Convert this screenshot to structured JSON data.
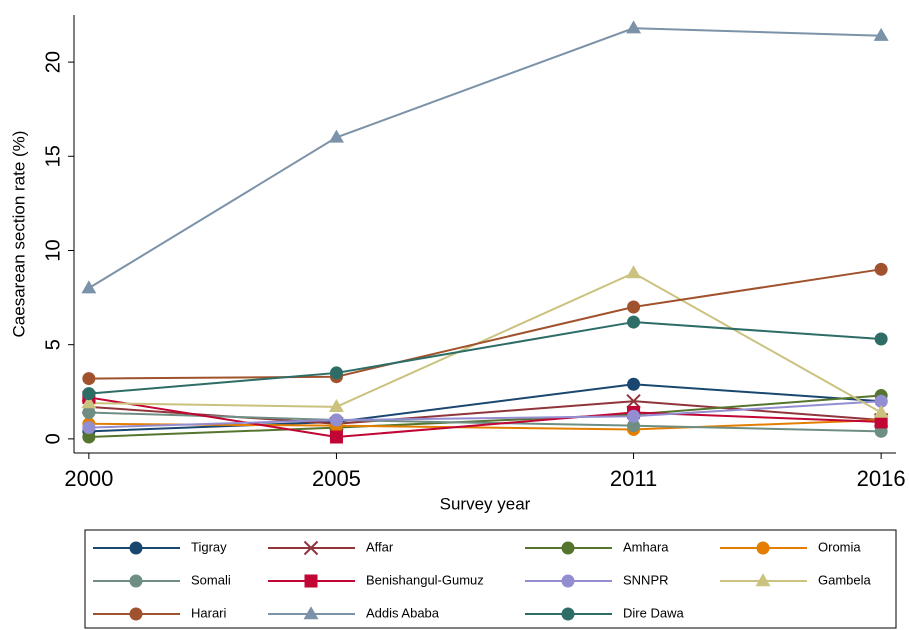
{
  "chart_data": {
    "type": "line",
    "x_label": "Survey year",
    "y_label": "Caesarean section rate (%)",
    "x": [
      2000,
      2005,
      2011,
      2016
    ],
    "xlim": [
      1999.7,
      2016.3
    ],
    "xticks": [
      2000,
      2005,
      2011,
      2016
    ],
    "ylim": [
      -0.75,
      22.5
    ],
    "yticks": [
      0,
      5,
      10,
      15,
      20
    ],
    "legend": "bottom",
    "series": [
      {
        "name": "Tigray",
        "color": "#1a476f",
        "marker": "circle",
        "values": [
          0.4,
          0.9,
          2.9,
          2.0
        ]
      },
      {
        "name": "Affar",
        "color": "#90353b",
        "marker": "x",
        "values": [
          1.7,
          0.8,
          2.0,
          1.0
        ]
      },
      {
        "name": "Amhara",
        "color": "#55752f",
        "marker": "circle",
        "values": [
          0.1,
          0.6,
          1.3,
          2.3
        ]
      },
      {
        "name": "Oromia",
        "color": "#e37e00",
        "marker": "circle",
        "values": [
          0.8,
          0.7,
          0.5,
          1.0
        ]
      },
      {
        "name": "Somali",
        "color": "#6e8e84",
        "marker": "circle",
        "values": [
          1.4,
          1.0,
          0.7,
          0.4
        ]
      },
      {
        "name": "Benishangul-Gumuz",
        "color": "#c10534",
        "marker": "square",
        "values": [
          2.2,
          0.1,
          1.4,
          0.9
        ]
      },
      {
        "name": "SNNPR",
        "color": "#938dd2",
        "marker": "circle",
        "values": [
          0.6,
          1.0,
          1.2,
          2.0
        ]
      },
      {
        "name": "Gambela",
        "color": "#cac27e",
        "marker": "triangle",
        "values": [
          1.9,
          1.7,
          8.8,
          1.4
        ]
      },
      {
        "name": "Harari",
        "color": "#a0522d",
        "marker": "circle",
        "values": [
          3.2,
          3.3,
          7.0,
          9.0
        ]
      },
      {
        "name": "Addis Ababa",
        "color": "#7b92a8",
        "marker": "triangle",
        "values": [
          8.0,
          16.0,
          21.8,
          21.4
        ]
      },
      {
        "name": "Dire Dawa",
        "color": "#2d6d66",
        "marker": "circle",
        "values": [
          2.4,
          3.5,
          6.2,
          5.3
        ]
      }
    ]
  }
}
